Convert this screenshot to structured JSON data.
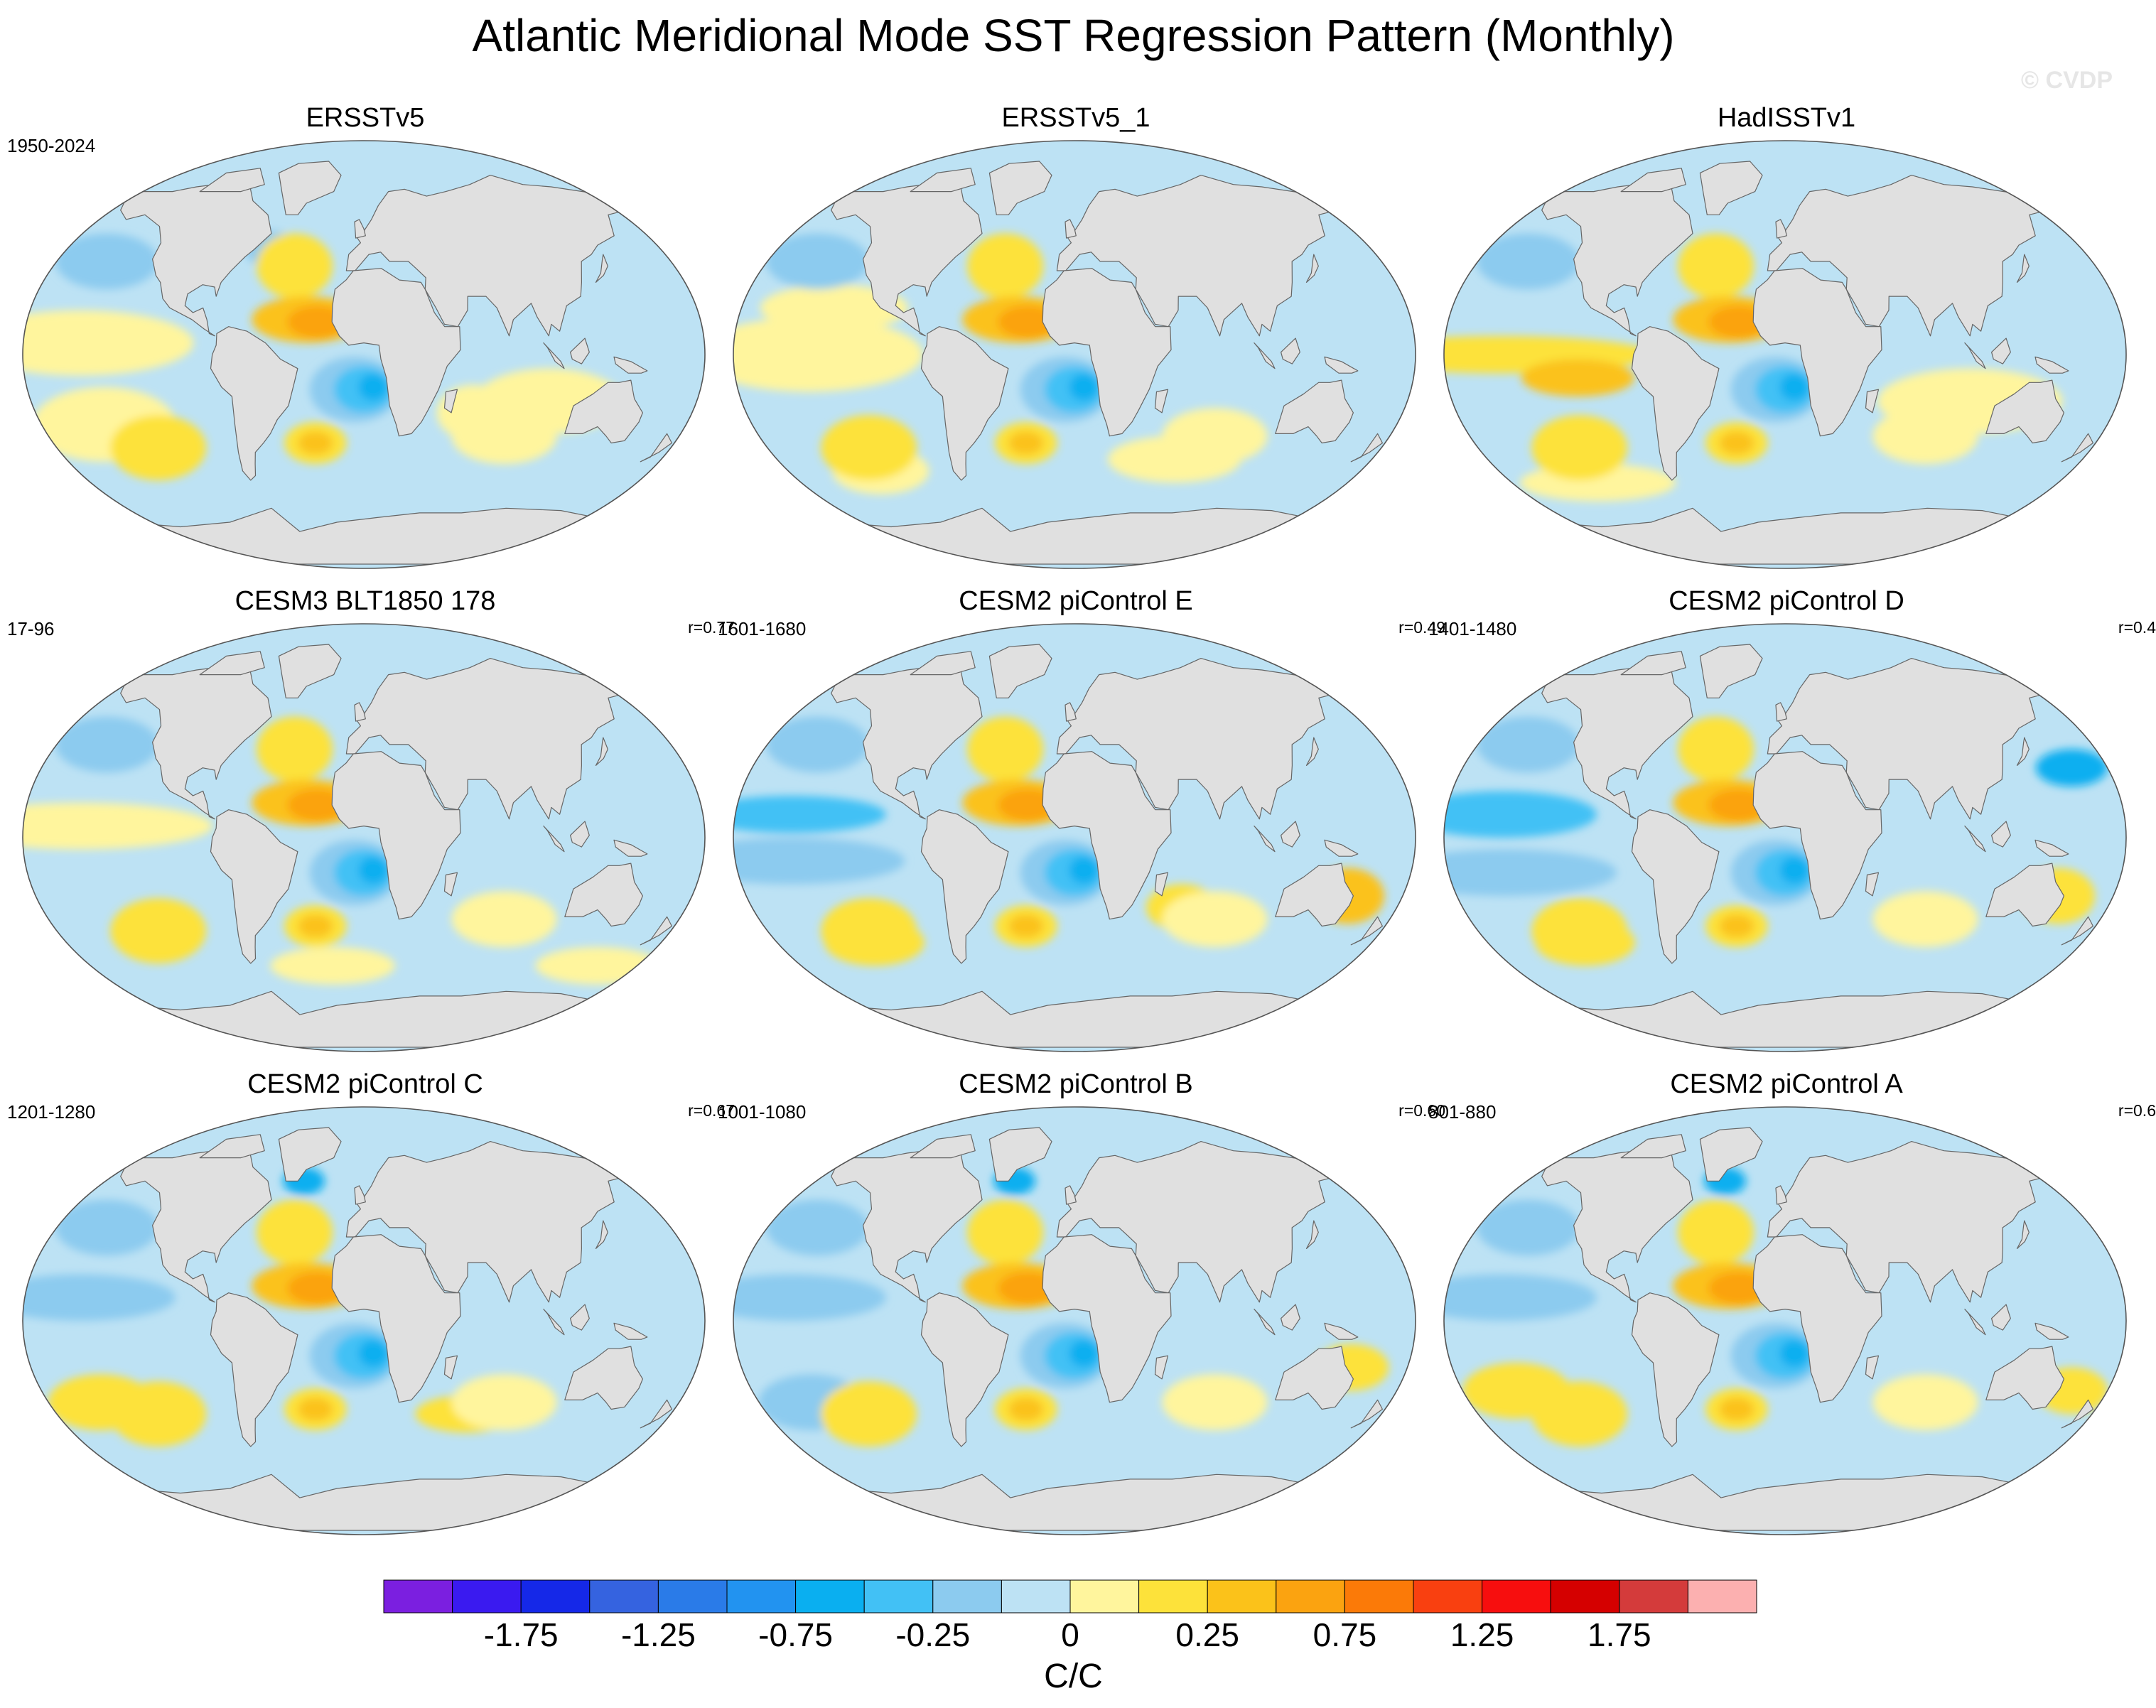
{
  "title": "Atlantic Meridional Mode SST Regression Pattern (Monthly)",
  "watermark": "© CVDP",
  "panels": [
    {
      "title": "ERSSTv5",
      "period": "1950-2024",
      "corr": "",
      "pattern": "obs1"
    },
    {
      "title": "ERSSTv5_1",
      "period": "",
      "corr": "",
      "pattern": "obs2"
    },
    {
      "title": "HadISSTv1",
      "period": "",
      "corr": "",
      "pattern": "obs3"
    },
    {
      "title": "CESM3 BLT1850 178",
      "period": "17-96",
      "corr": "r=0.77",
      "pattern": "m1"
    },
    {
      "title": "CESM2 piControl E",
      "period": "1601-1680",
      "corr": "r=0.49",
      "pattern": "m2"
    },
    {
      "title": "CESM2 piControl D",
      "period": "1401-1480",
      "corr": "r=0.4",
      "pattern": "m3"
    },
    {
      "title": "CESM2 piControl C",
      "period": "1201-1280",
      "corr": "r=0.67",
      "pattern": "m4"
    },
    {
      "title": "CESM2 piControl B",
      "period": "1001-1080",
      "corr": "r=0.60",
      "pattern": "m5"
    },
    {
      "title": "CESM2 piControl A",
      "period": "801-880",
      "corr": "r=0.6",
      "pattern": "m6"
    }
  ],
  "colorbar": {
    "colors": [
      "#7b1fe0",
      "#3a1af0",
      "#1528e8",
      "#3563e0",
      "#2a7be8",
      "#2293f0",
      "#0aaff0",
      "#42c1f5",
      "#8ccbef",
      "#bde2f4",
      "#fff59d",
      "#fde23a",
      "#fbc21a",
      "#fba310",
      "#fb7a08",
      "#f94010",
      "#f70e0e",
      "#d50000",
      "#d43b3b",
      "#fcb0b0"
    ],
    "tick_labels": [
      "-1.75",
      "-1.25",
      "-0.75",
      "-0.25",
      "0",
      "0.25",
      "0.75",
      "1.25",
      "1.75"
    ],
    "units": "C/C"
  }
}
